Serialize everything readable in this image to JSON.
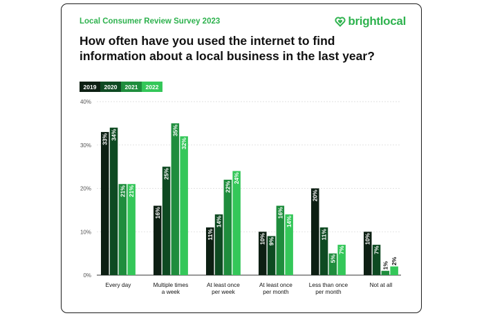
{
  "header": {
    "survey_title": "Local Consumer Review Survey 2023",
    "logo_text": "brightlocal",
    "logo_icon": "brightlocal-heart-icon"
  },
  "question": "How often have you used the internet to find information about a local business in the last year?",
  "colors": {
    "2019": "#0d1f13",
    "2020": "#0e4a22",
    "2021": "#1f8d3d",
    "2022": "#34c759",
    "brand": "#2fb34f",
    "grid": "#d9d9d9",
    "axis": "#333333"
  },
  "chart_data": {
    "type": "bar",
    "title": "How often have you used the internet to find information about a local business in the last year?",
    "categories": [
      [
        "Every day"
      ],
      [
        "Multiple times",
        "a week"
      ],
      [
        "At least once",
        "per week"
      ],
      [
        "At least once",
        "per month"
      ],
      [
        "Less than once",
        "per month"
      ],
      [
        "Not at all"
      ]
    ],
    "series": [
      {
        "name": "2019",
        "values": [
          33,
          16,
          11,
          10,
          20,
          10
        ]
      },
      {
        "name": "2020",
        "values": [
          34,
          25,
          14,
          9,
          11,
          7
        ]
      },
      {
        "name": "2021",
        "values": [
          21,
          35,
          22,
          16,
          5,
          1
        ]
      },
      {
        "name": "2022",
        "values": [
          21,
          32,
          24,
          14,
          7,
          2
        ]
      }
    ],
    "ylim": [
      0,
      40
    ],
    "yticks": [
      0,
      10,
      20,
      30,
      40
    ],
    "ytick_format": "{v}%",
    "value_label_format": "{v}%",
    "grid": true,
    "legend_position": "top-left"
  }
}
